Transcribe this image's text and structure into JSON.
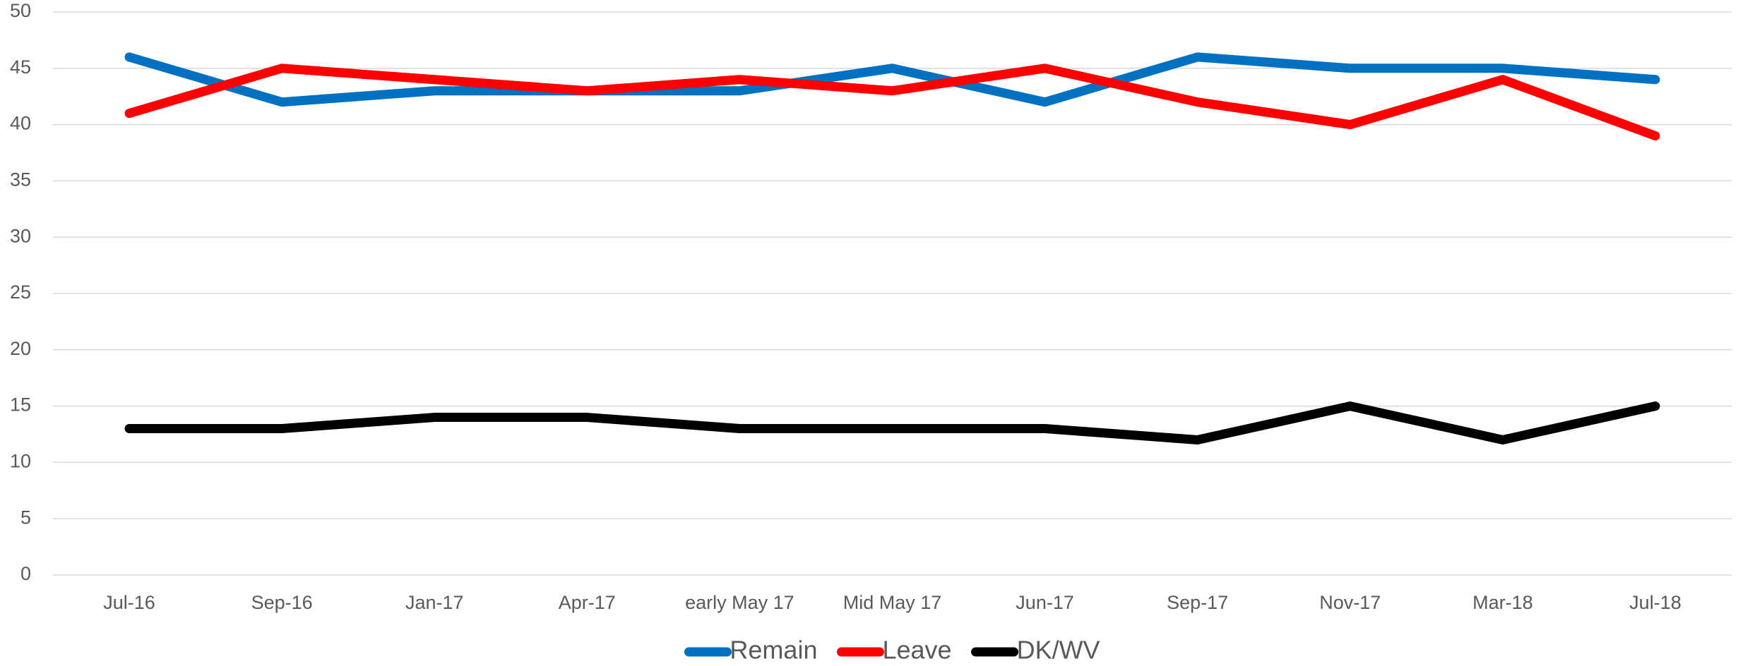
{
  "chart_data": {
    "type": "line",
    "categories": [
      "Jul-16",
      "Sep-16",
      "Jan-17",
      "Apr-17",
      "early May 17",
      "Mid May 17",
      "Jun-17",
      "Sep-17",
      "Nov-17",
      "Mar-18",
      "Jul-18"
    ],
    "series": [
      {
        "name": "Remain",
        "color": "#0070c0",
        "values": [
          46,
          42,
          43,
          43,
          43,
          45,
          42,
          46,
          45,
          45,
          44
        ]
      },
      {
        "name": "Leave",
        "color": "#ff0000",
        "values": [
          41,
          45,
          44,
          43,
          44,
          43,
          45,
          42,
          40,
          44,
          39
        ]
      },
      {
        "name": "DK/WV",
        "color": "#000000",
        "values": [
          13,
          13,
          14,
          14,
          13,
          13,
          13,
          12,
          15,
          12,
          15
        ]
      }
    ],
    "ylim": [
      0,
      50
    ],
    "yticks": [
      0,
      5,
      10,
      15,
      20,
      25,
      30,
      35,
      40,
      45,
      50
    ],
    "grid": true,
    "legend": "bottom"
  }
}
